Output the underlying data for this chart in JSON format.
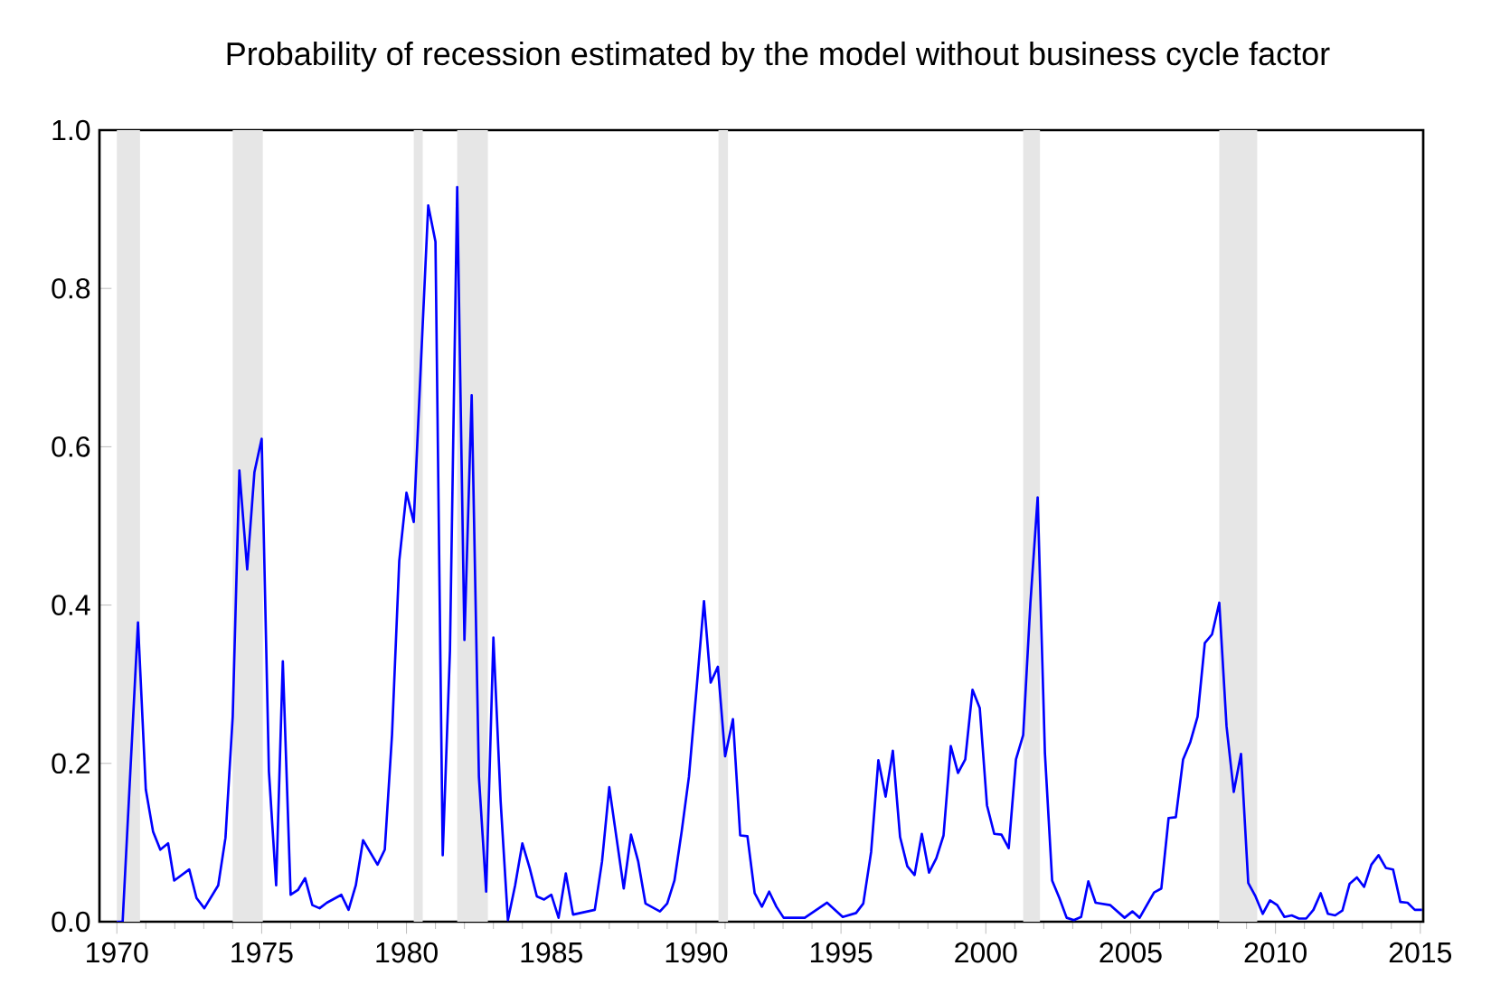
{
  "chart_data": {
    "type": "line",
    "title": "Probability of recession estimated by the model without business cycle factor",
    "x": [
      1970.0,
      1970.2,
      1970.73,
      1971.0,
      1971.25,
      1971.5,
      1971.77,
      1971.98,
      1972.5,
      1972.75,
      1973.02,
      1973.5,
      1973.75,
      1974.0,
      1974.23,
      1974.5,
      1974.75,
      1975.0,
      1975.25,
      1975.5,
      1975.73,
      1976.0,
      1976.25,
      1976.5,
      1976.75,
      1977.0,
      1977.25,
      1977.75,
      1978.0,
      1978.25,
      1978.5,
      1979.0,
      1979.25,
      1979.5,
      1979.75,
      1980.0,
      1980.25,
      1980.5,
      1980.75,
      1981.0,
      1981.25,
      1981.5,
      1981.75,
      1982.0,
      1982.25,
      1982.5,
      1982.75,
      1983.0,
      1983.25,
      1983.5,
      1983.75,
      1984.0,
      1984.25,
      1984.5,
      1984.75,
      1985.0,
      1985.25,
      1985.5,
      1985.75,
      1986.5,
      1986.75,
      1987.0,
      1987.25,
      1987.5,
      1987.75,
      1988.0,
      1988.25,
      1988.75,
      1989.0,
      1989.25,
      1989.5,
      1989.75,
      1990.02,
      1990.27,
      1990.5,
      1990.75,
      1991.0,
      1991.27,
      1991.52,
      1991.77,
      1992.02,
      1992.27,
      1992.52,
      1992.77,
      1993.02,
      1993.75,
      1994.52,
      1995.06,
      1995.52,
      1995.77,
      1996.04,
      1996.29,
      1996.54,
      1996.79,
      1997.04,
      1997.29,
      1997.54,
      1997.79,
      1998.04,
      1998.29,
      1998.54,
      1998.79,
      1999.04,
      1999.29,
      1999.54,
      1999.79,
      2000.04,
      2000.29,
      2000.54,
      2000.79,
      2001.04,
      2001.29,
      2001.54,
      2001.79,
      2002.04,
      2002.29,
      2002.54,
      2002.79,
      2003.04,
      2003.29,
      2003.54,
      2003.79,
      2004.29,
      2004.79,
      2005.06,
      2005.31,
      2005.81,
      2006.06,
      2006.31,
      2006.56,
      2006.81,
      2007.06,
      2007.31,
      2007.56,
      2007.81,
      2008.06,
      2008.31,
      2008.56,
      2008.81,
      2009.06,
      2009.31,
      2009.56,
      2009.81,
      2010.06,
      2010.31,
      2010.56,
      2010.81,
      2011.06,
      2011.31,
      2011.56,
      2011.81,
      2012.06,
      2012.31,
      2012.56,
      2012.81,
      2013.06,
      2013.31,
      2013.56,
      2013.81,
      2014.06,
      2014.31,
      2014.56,
      2014.81,
      2015.06
    ],
    "series": [
      {
        "color": "#0000ff",
        "values": [
          0,
          0,
          0.378,
          0.167,
          0.114,
          0.091,
          0.099,
          0.052,
          0.066,
          0.03,
          0.017,
          0.046,
          0.106,
          0.259,
          0.57,
          0.445,
          0.568,
          0.61,
          0.19,
          0.046,
          0.329,
          0.034,
          0.04,
          0.055,
          0.021,
          0.017,
          0.024,
          0.034,
          0.015,
          0.046,
          0.103,
          0.072,
          0.091,
          0.236,
          0.456,
          0.542,
          0.505,
          0.707,
          0.905,
          0.859,
          0.084,
          0.342,
          0.928,
          0.356,
          0.665,
          0.183,
          0.038,
          0.359,
          0.152,
          0.002,
          0.046,
          0.099,
          0.068,
          0.032,
          0.028,
          0.034,
          0.005,
          0.061,
          0.009,
          0.015,
          0.076,
          0.17,
          0.106,
          0.042,
          0.11,
          0.076,
          0.023,
          0.013,
          0.023,
          0.052,
          0.114,
          0.183,
          0.297,
          0.405,
          0.302,
          0.322,
          0.209,
          0.256,
          0.109,
          0.108,
          0.036,
          0.019,
          0.038,
          0.019,
          0.005,
          0.005,
          0.024,
          0.006,
          0.011,
          0.023,
          0.088,
          0.204,
          0.158,
          0.216,
          0.107,
          0.07,
          0.059,
          0.111,
          0.062,
          0.08,
          0.109,
          0.222,
          0.188,
          0.205,
          0.293,
          0.27,
          0.147,
          0.111,
          0.11,
          0.093,
          0.205,
          0.236,
          0.403,
          0.536,
          0.213,
          0.052,
          0.03,
          0.005,
          0.002,
          0.006,
          0.051,
          0.024,
          0.021,
          0.005,
          0.013,
          0.005,
          0.037,
          0.042,
          0.131,
          0.132,
          0.205,
          0.227,
          0.259,
          0.352,
          0.363,
          0.403,
          0.247,
          0.164,
          0.212,
          0.049,
          0.032,
          0.01,
          0.027,
          0.021,
          0.006,
          0.008,
          0.004,
          0.004,
          0.015,
          0.036,
          0.01,
          0.008,
          0.014,
          0.048,
          0.056,
          0.044,
          0.072,
          0.084,
          0.068,
          0.066,
          0.025,
          0.024,
          0.015,
          0.015
        ]
      }
    ],
    "xlim": [
      1969.4,
      2015.1
    ],
    "ylim": [
      0,
      1
    ],
    "xticks": [
      1970,
      1975,
      1980,
      1985,
      1990,
      1995,
      2000,
      2005,
      2010,
      2015
    ],
    "yticks": [
      {
        "value": 0,
        "label": "0.0"
      },
      {
        "value": 0.2,
        "label": "0.2"
      },
      {
        "value": 0.4,
        "label": "0.4"
      },
      {
        "value": 0.6,
        "label": "0.6"
      },
      {
        "value": 0.8,
        "label": "0.8"
      },
      {
        "value": 1,
        "label": "1.0"
      }
    ],
    "bands": [
      {
        "axis": "x",
        "from": 1970.0,
        "to": 1970.8,
        "color": "#e6e6e6"
      },
      {
        "axis": "x",
        "from": 1974.0,
        "to": 1975.04,
        "color": "#e6e6e6"
      },
      {
        "axis": "x",
        "from": 1980.25,
        "to": 1980.56,
        "color": "#e6e6e6"
      },
      {
        "axis": "x",
        "from": 1981.75,
        "to": 1982.81,
        "color": "#e6e6e6"
      },
      {
        "axis": "x",
        "from": 1990.77,
        "to": 1991.1,
        "color": "#e6e6e6"
      },
      {
        "axis": "x",
        "from": 2001.29,
        "to": 2001.87,
        "color": "#e6e6e6"
      },
      {
        "axis": "x",
        "from": 2008.06,
        "to": 2009.37,
        "color": "#e6e6e6"
      }
    ],
    "grid": false,
    "legend": false,
    "marker": "none",
    "line_style": "solid"
  }
}
